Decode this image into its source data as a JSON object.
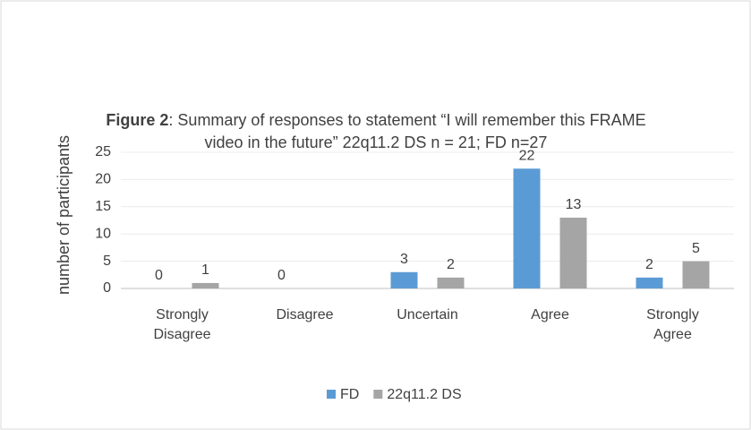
{
  "chart_data": {
    "type": "bar",
    "title_prefix": "Figure 2",
    "title": ": Summary of responses to statement “I will remember this FRAME video in the future” 22q11.2 DS n = 21; FD n=27",
    "y_label": "number of participants",
    "categories": [
      "Strongly Disagree",
      "Disagree",
      "Uncertain",
      "Agree",
      "Strongly Agree"
    ],
    "series": [
      {
        "name": "FD",
        "color": "#5b9bd5",
        "values": [
          0,
          0,
          3,
          22,
          2
        ]
      },
      {
        "name": "22q11.2 DS",
        "color": "#a5a5a5",
        "values": [
          1,
          null,
          2,
          13,
          5
        ]
      }
    ],
    "ylim": [
      0,
      25
    ],
    "yticks": [
      0,
      5,
      10,
      15,
      20,
      25
    ],
    "grid": true,
    "legend": "bottom"
  }
}
